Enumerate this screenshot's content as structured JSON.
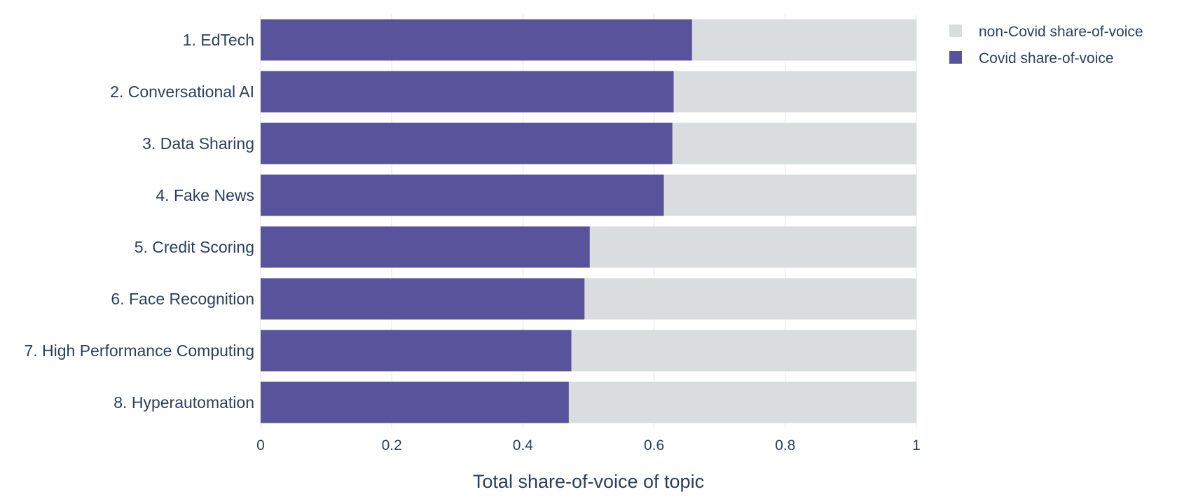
{
  "chart_data": {
    "type": "bar",
    "orientation": "horizontal",
    "stacked": true,
    "categories": [
      "1. EdTech",
      "2. Conversational AI",
      "3. Data Sharing",
      "4. Fake News",
      "5. Credit Scoring",
      "6. Face Recognition",
      "7. High Performance Computing",
      "8. Hyperautomation"
    ],
    "series": [
      {
        "name": "Covid share-of-voice",
        "color": "#58539a",
        "values": [
          0.658,
          0.63,
          0.628,
          0.615,
          0.502,
          0.494,
          0.474,
          0.47
        ]
      },
      {
        "name": "non-Covid share-of-voice",
        "color": "#dadddd",
        "values": [
          0.342,
          0.37,
          0.372,
          0.385,
          0.498,
          0.506,
          0.526,
          0.53
        ]
      }
    ],
    "legend_order": [
      "non-Covid share-of-voice",
      "Covid share-of-voice"
    ],
    "xlabel": "Total share-of-voice of topic",
    "ylabel": "",
    "xlim": [
      0,
      1
    ],
    "xticks": [
      0,
      0.2,
      0.4,
      0.6,
      0.8,
      1
    ],
    "xtick_labels": [
      "0",
      "0.2",
      "0.4",
      "0.6",
      "0.8",
      "1"
    ],
    "grid": true,
    "legend_position": "top-right"
  }
}
